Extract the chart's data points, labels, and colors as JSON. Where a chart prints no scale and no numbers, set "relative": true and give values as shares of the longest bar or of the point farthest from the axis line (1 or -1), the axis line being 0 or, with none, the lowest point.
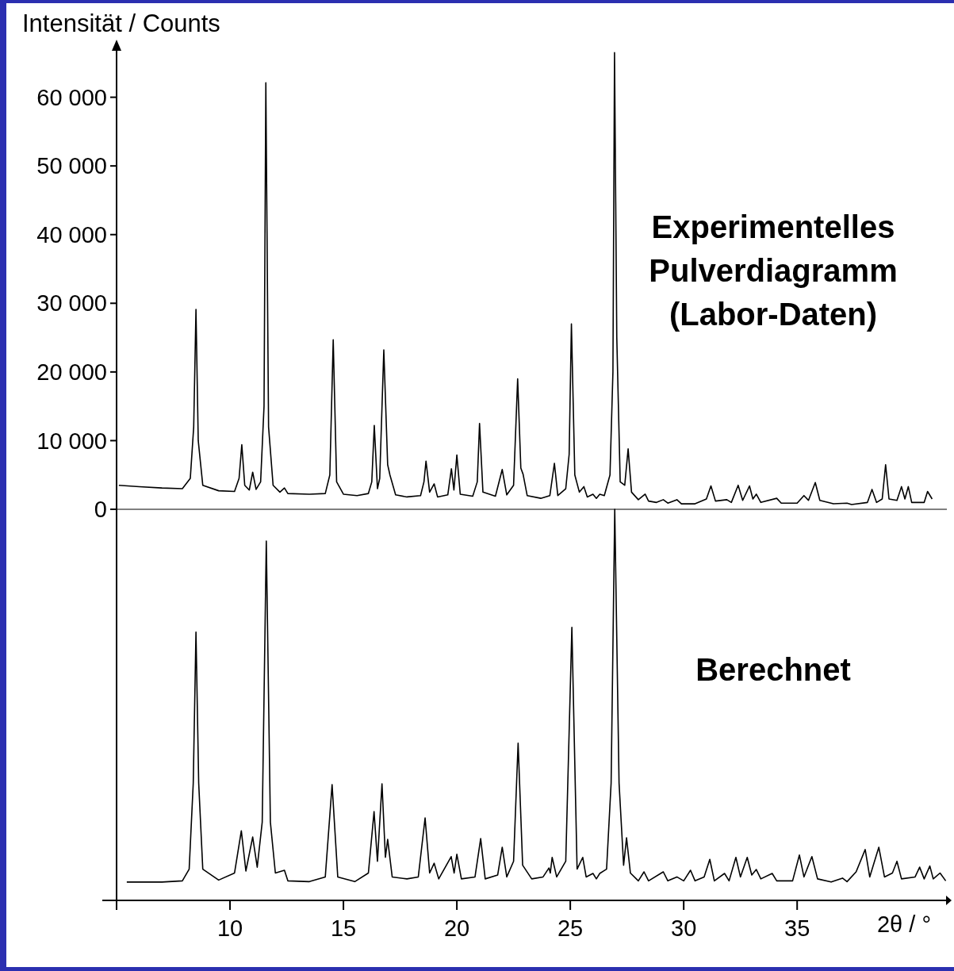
{
  "chart_data": [
    {
      "type": "line",
      "ylabel": "Intensität / Counts",
      "annotations": [
        "Experimentelles Pulverdiagramm (Labor-Daten)"
      ],
      "xlim": [
        5,
        41.6
      ],
      "ylim": [
        0,
        67000
      ],
      "yticks": [
        0,
        {
          "value": 10000,
          "label": "10 000"
        },
        {
          "value": 20000,
          "label": "20 000"
        },
        {
          "value": 30000,
          "label": "30 000"
        },
        {
          "value": 40000,
          "label": "40 000"
        },
        {
          "value": 50000,
          "label": "50 000"
        },
        {
          "value": 60000,
          "label": "60 000"
        }
      ],
      "tick_labels": "y",
      "grid": false,
      "line_style": "solid",
      "series": [
        {
          "color": "#000000",
          "x": [
            5.1,
            6,
            7,
            7.9,
            8.25,
            8.4,
            8.5,
            8.6,
            8.8,
            9.5,
            10.2,
            10.4,
            10.52,
            10.65,
            10.85,
            11.0,
            11.15,
            11.35,
            11.5,
            11.58,
            11.7,
            11.9,
            12.2,
            12.4,
            12.55,
            13.5,
            14.2,
            14.4,
            14.55,
            14.7,
            15,
            15.6,
            16.1,
            16.25,
            16.36,
            16.5,
            16.6,
            16.78,
            16.95,
            17.05,
            17.3,
            17.8,
            18.4,
            18.55,
            18.64,
            18.8,
            19.0,
            19.15,
            19.6,
            19.76,
            19.87,
            20.0,
            20.15,
            20.7,
            20.9,
            21.0,
            21.15,
            21.7,
            22.0,
            22.2,
            22.5,
            22.68,
            22.82,
            22.92,
            23.1,
            23.7,
            24.1,
            24.3,
            24.45,
            24.8,
            24.95,
            25.05,
            25.2,
            25.4,
            25.6,
            25.75,
            26.0,
            26.15,
            26.3,
            26.5,
            26.75,
            26.88,
            26.95,
            27.05,
            27.2,
            27.4,
            27.55,
            27.7,
            28.0,
            28.3,
            28.45,
            28.8,
            29.1,
            29.3,
            29.7,
            29.9,
            30.5,
            31.0,
            31.2,
            31.4,
            31.9,
            32.1,
            32.4,
            32.6,
            32.9,
            33.05,
            33.2,
            33.4,
            34.1,
            34.3,
            35.0,
            35.3,
            35.5,
            35.8,
            36.0,
            36.6,
            37.2,
            37.4,
            38.1,
            38.3,
            38.5,
            38.75,
            38.9,
            39.05,
            39.4,
            39.6,
            39.75,
            39.9,
            40.05,
            40.6,
            40.75,
            40.95
          ],
          "values": [
            3500,
            3300,
            3100,
            3000,
            4500,
            12000,
            29100,
            10000,
            3500,
            2700,
            2600,
            4500,
            9400,
            3500,
            2800,
            5400,
            2900,
            4000,
            15000,
            62100,
            12000,
            3500,
            2500,
            3100,
            2300,
            2200,
            2300,
            5000,
            24700,
            4000,
            2200,
            2000,
            2300,
            4000,
            12200,
            3000,
            4500,
            23200,
            6500,
            5000,
            2100,
            1800,
            2000,
            4000,
            7000,
            2500,
            3700,
            1800,
            2100,
            5900,
            2800,
            7900,
            2200,
            1900,
            4000,
            12500,
            2500,
            1900,
            5800,
            2100,
            3500,
            19000,
            6000,
            5100,
            2000,
            1600,
            2000,
            6700,
            2000,
            3000,
            8000,
            27000,
            5000,
            2500,
            3300,
            1800,
            2200,
            1600,
            2200,
            2000,
            5000,
            20000,
            66500,
            25000,
            4000,
            3500,
            8800,
            2500,
            1400,
            2200,
            1200,
            1000,
            1400,
            900,
            1400,
            800,
            800,
            1500,
            3400,
            1200,
            1400,
            1000,
            3500,
            1300,
            3400,
            1500,
            2200,
            1000,
            1600,
            900,
            900,
            2000,
            1300,
            3900,
            1300,
            800,
            900,
            700,
            1000,
            2900,
            1000,
            1500,
            6500,
            1500,
            1300,
            3300,
            1500,
            3300,
            1000,
            1000,
            2600,
            1500
          ]
        }
      ]
    },
    {
      "type": "line",
      "xlabel": "2$_{}$θ / °",
      "annotations": [
        "Berechnet"
      ],
      "relative": true,
      "xlim": [
        5,
        41.6
      ],
      "xticks": [
        {
          "value": 5,
          "label": null
        },
        10,
        15,
        20,
        25,
        30,
        35
      ],
      "tick_labels": "x",
      "grid": false,
      "line_style": "solid",
      "series": [
        {
          "color": "#000000",
          "x": [
            5.45,
            7,
            7.9,
            8.2,
            8.38,
            8.5,
            8.62,
            8.8,
            9.5,
            10.2,
            10.5,
            10.7,
            11.0,
            11.2,
            11.42,
            11.6,
            11.78,
            12.0,
            12.4,
            12.55,
            13.5,
            14.2,
            14.5,
            14.75,
            15.5,
            16.1,
            16.35,
            16.5,
            16.7,
            16.85,
            16.95,
            17.15,
            17.8,
            18.3,
            18.6,
            18.8,
            19.0,
            19.2,
            19.75,
            19.88,
            20.0,
            20.2,
            20.8,
            21.05,
            21.25,
            21.8,
            22.0,
            22.2,
            22.5,
            22.7,
            22.9,
            23.3,
            23.8,
            24.06,
            24.12,
            24.2,
            24.4,
            24.8,
            25.07,
            25.3,
            25.55,
            25.7,
            26.0,
            26.15,
            26.3,
            26.6,
            26.8,
            26.96,
            27.15,
            27.35,
            27.48,
            27.65,
            28.0,
            28.25,
            28.45,
            29.1,
            29.3,
            29.7,
            30.0,
            30.3,
            30.5,
            30.9,
            31.15,
            31.35,
            31.8,
            32.0,
            32.3,
            32.5,
            32.8,
            33.0,
            33.2,
            33.4,
            33.9,
            34.1,
            34.8,
            35.1,
            35.3,
            35.65,
            35.9,
            36.5,
            37.0,
            37.2,
            37.6,
            38.0,
            38.2,
            38.6,
            38.85,
            39.2,
            39.4,
            39.6,
            40.2,
            40.4,
            40.6,
            40.85,
            41.0,
            41.3,
            41.55
          ],
          "values": [
            0.047,
            0.047,
            0.05,
            0.08,
            0.3,
            0.686,
            0.3,
            0.08,
            0.052,
            0.07,
            0.178,
            0.075,
            0.162,
            0.085,
            0.2,
            0.919,
            0.2,
            0.07,
            0.077,
            0.05,
            0.048,
            0.06,
            0.296,
            0.06,
            0.048,
            0.07,
            0.227,
            0.1,
            0.298,
            0.11,
            0.156,
            0.06,
            0.055,
            0.06,
            0.211,
            0.07,
            0.095,
            0.055,
            0.112,
            0.07,
            0.118,
            0.055,
            0.06,
            0.158,
            0.055,
            0.065,
            0.136,
            0.06,
            0.1,
            0.402,
            0.09,
            0.055,
            0.06,
            0.083,
            0.07,
            0.11,
            0.06,
            0.1,
            0.698,
            0.08,
            0.11,
            0.06,
            0.069,
            0.055,
            0.069,
            0.08,
            0.3,
            1,
            0.3,
            0.09,
            0.16,
            0.07,
            0.05,
            0.073,
            0.05,
            0.073,
            0.05,
            0.06,
            0.05,
            0.077,
            0.05,
            0.06,
            0.105,
            0.05,
            0.069,
            0.05,
            0.11,
            0.06,
            0.11,
            0.065,
            0.079,
            0.055,
            0.069,
            0.05,
            0.05,
            0.116,
            0.06,
            0.112,
            0.055,
            0.047,
            0.057,
            0.048,
            0.073,
            0.13,
            0.06,
            0.136,
            0.06,
            0.07,
            0.1,
            0.055,
            0.06,
            0.085,
            0.055,
            0.088,
            0.055,
            0.07,
            0.05
          ]
        }
      ]
    }
  ]
}
